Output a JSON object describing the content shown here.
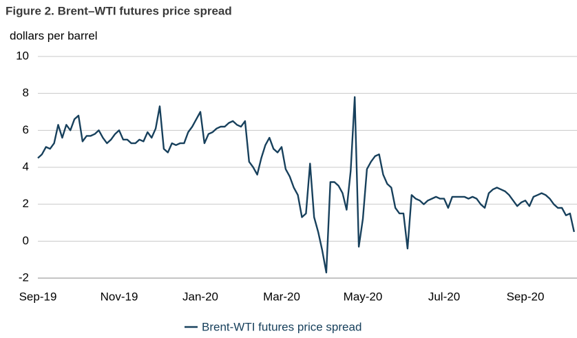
{
  "chart_data": {
    "type": "line",
    "title": "Figure 2. Brent–WTI futures price spread",
    "y_label": "dollars per barrel",
    "categories": [
      "Sep-19",
      null,
      null,
      null,
      null,
      null,
      null,
      null,
      null,
      null,
      null,
      null,
      null,
      null,
      null,
      null,
      null,
      null,
      null,
      null,
      "Nov-19",
      null,
      null,
      null,
      null,
      null,
      null,
      null,
      null,
      null,
      null,
      null,
      null,
      null,
      null,
      null,
      null,
      null,
      null,
      null,
      "Jan-20",
      null,
      null,
      null,
      null,
      null,
      null,
      null,
      null,
      null,
      null,
      null,
      null,
      null,
      null,
      null,
      null,
      null,
      null,
      null,
      "Mar-20",
      null,
      null,
      null,
      null,
      null,
      null,
      null,
      null,
      null,
      null,
      null,
      null,
      null,
      null,
      null,
      null,
      null,
      null,
      null,
      "May-20",
      null,
      null,
      null,
      null,
      null,
      null,
      null,
      null,
      null,
      null,
      null,
      null,
      null,
      null,
      null,
      null,
      null,
      null,
      null,
      "Jul-20",
      null,
      null,
      null,
      null,
      null,
      null,
      null,
      null,
      null,
      null,
      null,
      null,
      null,
      null,
      null,
      null,
      null,
      null,
      null,
      "Sep-20",
      null,
      null,
      null,
      null,
      null,
      null,
      null,
      null,
      null,
      null,
      null,
      null
    ],
    "series": [
      {
        "name": "Brent-WTI futures price spread",
        "color": "#17405c",
        "values": [
          4.5,
          4.7,
          5.1,
          5.0,
          5.3,
          6.3,
          5.6,
          6.3,
          6.0,
          6.6,
          6.8,
          5.4,
          5.7,
          5.7,
          5.8,
          6.0,
          5.6,
          5.3,
          5.5,
          5.8,
          6.0,
          5.5,
          5.5,
          5.3,
          5.3,
          5.5,
          5.4,
          5.9,
          5.6,
          6.1,
          7.3,
          5.0,
          4.8,
          5.3,
          5.2,
          5.3,
          5.3,
          5.9,
          6.2,
          6.6,
          7.0,
          5.3,
          5.8,
          5.9,
          6.1,
          6.2,
          6.2,
          6.4,
          6.5,
          6.3,
          6.2,
          6.5,
          4.3,
          4.0,
          3.6,
          4.5,
          5.2,
          5.6,
          5.0,
          4.8,
          5.1,
          3.9,
          3.5,
          2.9,
          2.5,
          1.3,
          1.5,
          4.2,
          1.3,
          0.5,
          -0.5,
          -1.7,
          3.2,
          3.2,
          3.0,
          2.6,
          1.7,
          3.8,
          7.8,
          -0.3,
          1.2,
          3.9,
          4.3,
          4.6,
          4.7,
          3.6,
          3.1,
          2.9,
          1.8,
          1.5,
          1.5,
          -0.4,
          2.5,
          2.3,
          2.2,
          2.0,
          2.2,
          2.3,
          2.4,
          2.3,
          2.3,
          1.8,
          2.4,
          2.4,
          2.4,
          2.4,
          2.3,
          2.4,
          2.3,
          2.0,
          1.8,
          2.6,
          2.8,
          2.9,
          2.8,
          2.7,
          2.5,
          2.2,
          1.9,
          2.1,
          2.2,
          1.9,
          2.4,
          2.5,
          2.6,
          2.5,
          2.3,
          2.0,
          1.8,
          1.8,
          1.4,
          1.5,
          0.5
        ]
      }
    ],
    "ylim": [
      -2,
      10
    ],
    "yticks": [
      -2,
      0,
      2,
      4,
      6,
      8,
      10
    ],
    "grid": true
  }
}
